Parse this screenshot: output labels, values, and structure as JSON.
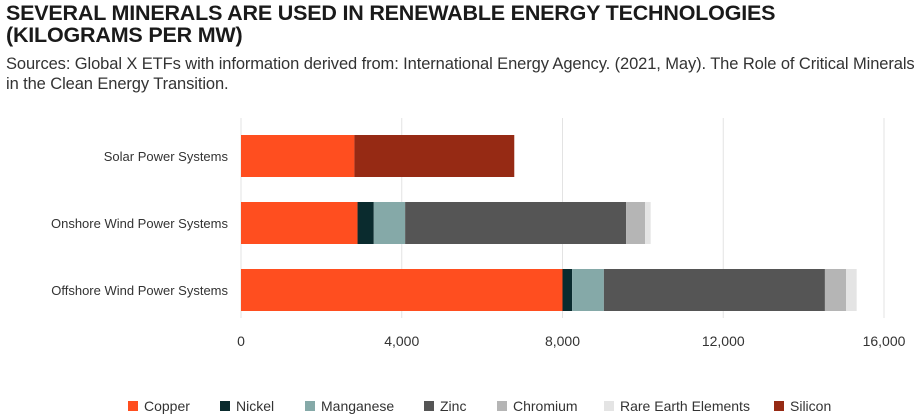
{
  "page": {
    "title": "SEVERAL MINERALS ARE USED IN RENEWABLE ENERGY TECHNOLOGIES (KILOGRAMS PER MW)",
    "subtitle": "Sources: Global X ETFs with information derived from: International Energy Agency. (2021, May). The Role of Critical Minerals in the Clean Energy Transition."
  },
  "chart_data": {
    "type": "bar",
    "orientation": "horizontal",
    "stacked": true,
    "title": "SEVERAL MINERALS ARE USED IN RENEWABLE ENERGY TECHNOLOGIES (KILOGRAMS PER MW)",
    "xlabel": "",
    "ylabel": "",
    "xlim": [
      0,
      16000
    ],
    "x_ticks": [
      0,
      4000,
      8000,
      12000,
      16000
    ],
    "x_tick_labels": [
      "0",
      "4,000",
      "8,000",
      "12,000",
      "16,000"
    ],
    "grid": "vertical",
    "legend_position": "bottom",
    "categories": [
      "Solar Power Systems",
      "Onshore Wind Power Systems",
      "Offshore Wind Power Systems"
    ],
    "series": [
      {
        "name": "Copper",
        "color": "#FF4E1F",
        "values": [
          2822,
          2900,
          8000
        ]
      },
      {
        "name": "Nickel",
        "color": "#0A2B2E",
        "values": [
          0,
          404,
          240
        ]
      },
      {
        "name": "Manganese",
        "color": "#85A9A8",
        "values": [
          0,
          780,
          790
        ]
      },
      {
        "name": "Zinc",
        "color": "#555555",
        "values": [
          0,
          5500,
          5500
        ]
      },
      {
        "name": "Chromium",
        "color": "#B5B5B5",
        "values": [
          0,
          470,
          525
        ]
      },
      {
        "name": "Rare Earth Elements",
        "color": "#E4E4E4",
        "values": [
          0,
          140,
          265
        ]
      },
      {
        "name": "Silicon",
        "color": "#962A14",
        "values": [
          3978,
          0,
          0
        ]
      }
    ]
  }
}
